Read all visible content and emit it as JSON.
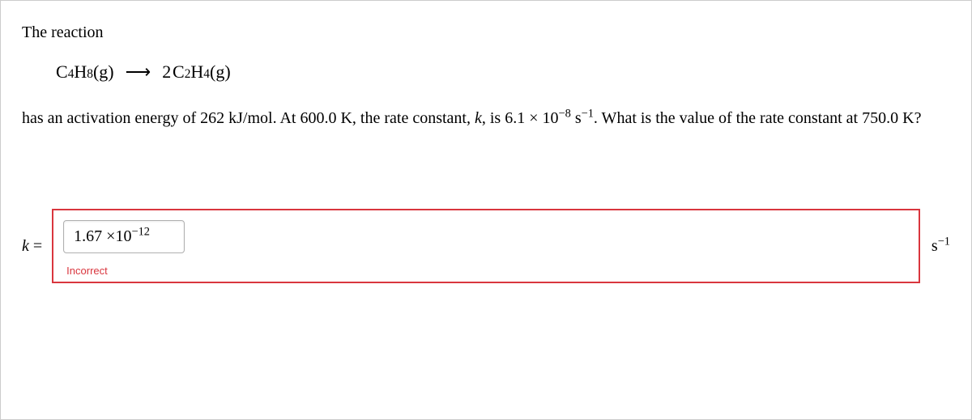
{
  "intro": "The reaction",
  "equation": {
    "reactant_formula": "C4H8",
    "reactant_phase": "(g)",
    "arrow": "⟶",
    "product_coeff": "2",
    "product_formula": "C2H4",
    "product_phase": "(g)"
  },
  "body": {
    "pre": "has an activation energy of ",
    "Ea": "262 kJ/mol",
    "mid1": ". At ",
    "T1": "600.0 K",
    "mid2": ", the rate constant, ",
    "ksym": "k",
    "mid3": ", is ",
    "k1_coeff": "6.1",
    "times": "×",
    "k1_base": "10",
    "k1_exp": "−8",
    "k1_unit_base": "s",
    "k1_unit_exp": "−1",
    "mid4": ". What is the value of the rate constant at ",
    "T2": "750.0 K",
    "end": "?"
  },
  "answer": {
    "ksym": "k",
    "eq": "=",
    "entered_coeff": "1.67",
    "entered_times": "×10",
    "entered_exp": "−12",
    "feedback": "Incorrect",
    "unit_base": "s",
    "unit_exp": "−1"
  },
  "style": {
    "border_color": "#cccccc",
    "error_color": "#d9363e",
    "text_color": "#000000",
    "bg_color": "#ffffff"
  }
}
